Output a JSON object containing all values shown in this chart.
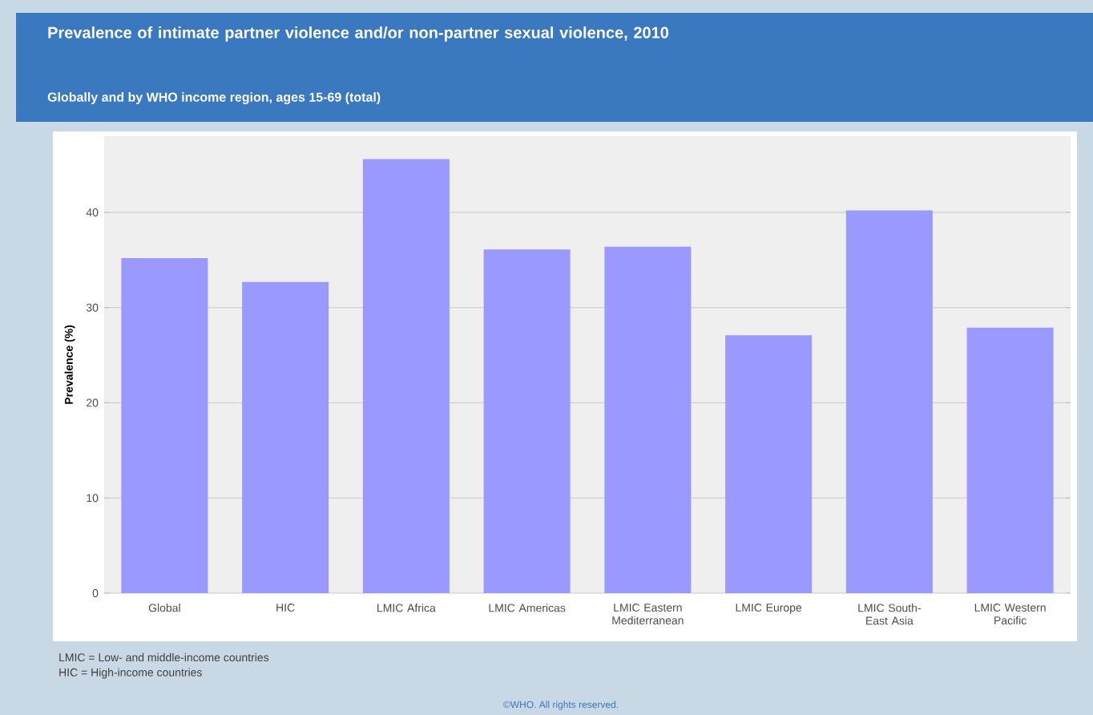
{
  "chart_data": {
    "type": "bar",
    "title": "Prevalence of intimate partner violence and/or non-partner sexual violence, 2010",
    "subtitle": "Globally and by WHO income region, ages 15-69 (total)",
    "ylabel": "Prevalence (%)",
    "categories": [
      "Global",
      "HIC",
      "LMIC Africa",
      "LMIC Americas",
      "LMIC Eastern Mediterranean",
      "LMIC Europe",
      "LMIC South-East Asia",
      "LMIC Western Pacific"
    ],
    "values": [
      35.2,
      32.7,
      45.6,
      36.1,
      36.4,
      27.1,
      40.2,
      27.9
    ],
    "color": "#9999ff",
    "ylim": [
      0,
      48
    ],
    "yticks": [
      0,
      10,
      20,
      30,
      40
    ],
    "grid": "y",
    "annotations": [
      "LMIC = Low- and middle-income countries",
      "HIC = High-income countries",
      "©WHO. All rights reserved."
    ]
  }
}
